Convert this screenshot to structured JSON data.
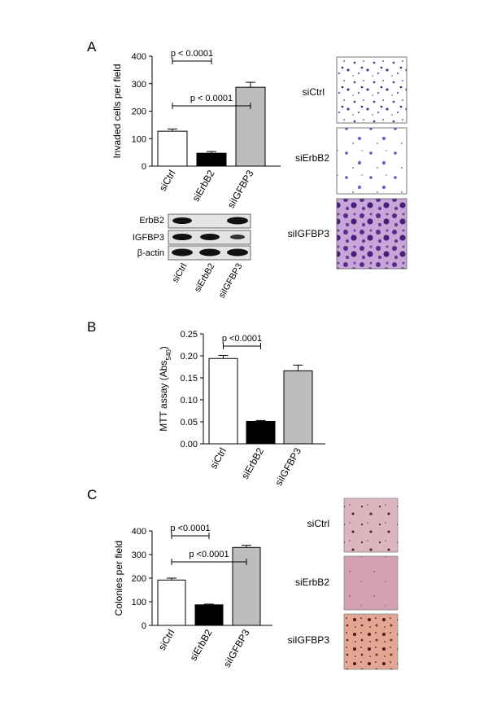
{
  "panels": {
    "A": {
      "letter": "A",
      "chart_data": {
        "type": "bar",
        "categories": [
          "siCtrl",
          "siErbB2",
          "siIGFBP3"
        ],
        "values": [
          127,
          47,
          287
        ],
        "errors": [
          8,
          6,
          18
        ],
        "ylabel": "Invaded cells per field",
        "ylim": [
          0,
          400
        ],
        "yticks": [
          "0",
          "100",
          "200",
          "300",
          "400"
        ],
        "bar_colors": [
          "#ffffff",
          "#000000",
          "#bdbdbd"
        ],
        "annotations": [
          {
            "text": "p < 0.0001",
            "from": 0,
            "to": 1
          },
          {
            "text": "p < 0.0001",
            "from": 0,
            "to": 2
          }
        ]
      },
      "blot": {
        "rows": [
          "ErbB2",
          "IGFBP3",
          "β-actin"
        ],
        "lanes": [
          "siCtrl",
          "siErbB2",
          "siIGFBP3"
        ]
      },
      "micrographs": [
        "siCtrl",
        "siErbB2",
        "siIGFBP3"
      ]
    },
    "B": {
      "letter": "B",
      "chart_data": {
        "type": "bar",
        "categories": [
          "siCtrl",
          "siErbB2",
          "siIGFBP3"
        ],
        "values": [
          0.194,
          0.051,
          0.166
        ],
        "errors": [
          0.007,
          0.002,
          0.013
        ],
        "ylabel_main": "MTT assay (Abs",
        "ylabel_sub": "540",
        "ylabel_end": ")",
        "ylim": [
          0,
          0.25
        ],
        "yticks": [
          "0.00",
          "0.05",
          "0.10",
          "0.15",
          "0.20",
          "0.25"
        ],
        "bar_colors": [
          "#ffffff",
          "#000000",
          "#bdbdbd"
        ],
        "annotations": [
          {
            "text": "p <0.0001",
            "from": 0,
            "to": 1
          }
        ]
      }
    },
    "C": {
      "letter": "C",
      "chart_data": {
        "type": "bar",
        "categories": [
          "siCtrl",
          "siErbB2",
          "siIGFBP3"
        ],
        "values": [
          192,
          87,
          330
        ],
        "errors": [
          8,
          3,
          9
        ],
        "ylabel": "Colonies per field",
        "ylim": [
          0,
          400
        ],
        "yticks": [
          "0",
          "100",
          "200",
          "300",
          "400"
        ],
        "bar_colors": [
          "#ffffff",
          "#000000",
          "#bdbdbd"
        ],
        "annotations": [
          {
            "text": "p <0.0001",
            "from": 0,
            "to": 1
          },
          {
            "text": "p <0.0001",
            "from": 0,
            "to": 2
          }
        ]
      },
      "micrographs": [
        "siCtrl",
        "siErbB2",
        "siIGFBP3"
      ]
    }
  }
}
